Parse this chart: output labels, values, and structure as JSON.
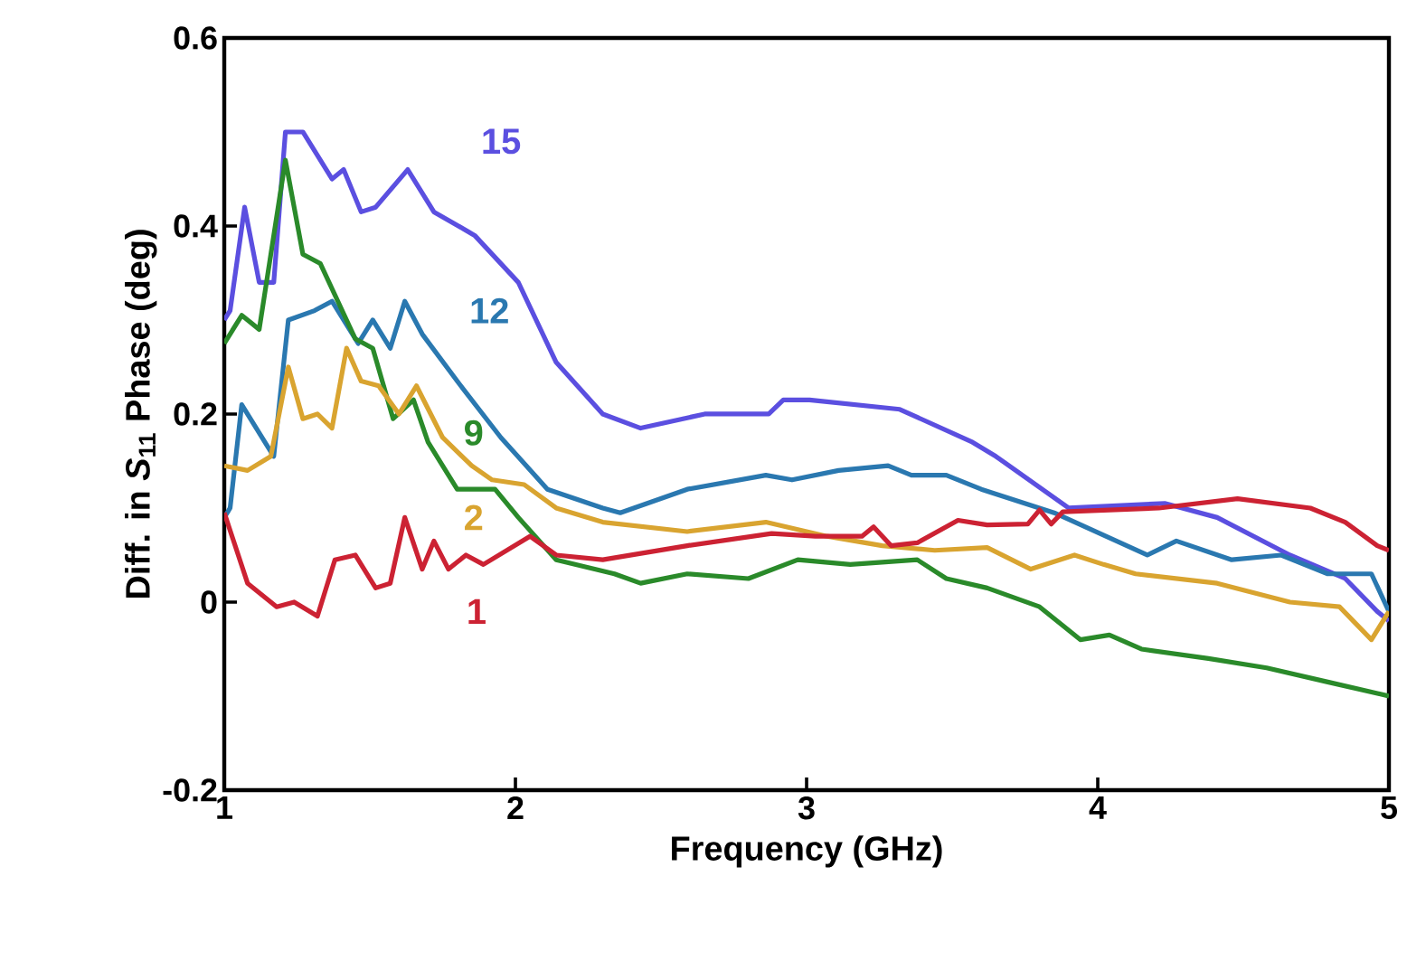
{
  "chart_data": {
    "type": "line",
    "xlabel": "Frequency (GHz)",
    "ylabel": "Diff. in *S*$_{11}$ Phase (deg)",
    "xlim": [
      1,
      5
    ],
    "xticks": [
      1,
      2,
      3,
      4,
      5
    ],
    "ylim": [
      -0.2,
      0.6
    ],
    "yticks": [
      -0.2,
      0,
      0.2,
      0.4,
      0.6
    ],
    "grid": false,
    "legend": false,
    "marker": "none",
    "line_style": "solid",
    "series": [
      {
        "name": "15",
        "color": "#5b4fe0",
        "x": [
          1.0,
          1.02,
          1.07,
          1.12,
          1.17,
          1.21,
          1.27,
          1.37,
          1.41,
          1.47,
          1.52,
          1.63,
          1.72,
          1.86,
          2.01,
          2.14,
          2.3,
          2.43,
          2.65,
          2.87,
          2.92,
          3.01,
          3.32,
          3.57,
          3.65,
          3.9,
          4.23,
          4.41,
          4.66,
          4.85,
          4.96,
          5.0
        ],
        "values": [
          0.3,
          0.31,
          0.42,
          0.34,
          0.34,
          0.5,
          0.5,
          0.45,
          0.46,
          0.415,
          0.42,
          0.46,
          0.415,
          0.39,
          0.34,
          0.255,
          0.2,
          0.185,
          0.2,
          0.2,
          0.215,
          0.215,
          0.205,
          0.17,
          0.155,
          0.1,
          0.105,
          0.09,
          0.05,
          0.025,
          -0.01,
          -0.02
        ]
      },
      {
        "name": "12",
        "color": "#2a78b0",
        "x": [
          1.0,
          1.02,
          1.06,
          1.17,
          1.22,
          1.31,
          1.37,
          1.46,
          1.51,
          1.57,
          1.62,
          1.68,
          1.8,
          1.95,
          2.11,
          2.3,
          2.36,
          2.59,
          2.86,
          2.95,
          3.11,
          3.28,
          3.36,
          3.48,
          3.6,
          3.85,
          4.17,
          4.27,
          4.46,
          4.63,
          4.79,
          4.94,
          5.0
        ],
        "values": [
          0.09,
          0.1,
          0.21,
          0.155,
          0.3,
          0.31,
          0.32,
          0.275,
          0.3,
          0.27,
          0.32,
          0.285,
          0.235,
          0.175,
          0.12,
          0.1,
          0.095,
          0.12,
          0.135,
          0.13,
          0.14,
          0.145,
          0.135,
          0.135,
          0.12,
          0.095,
          0.05,
          0.065,
          0.045,
          0.05,
          0.03,
          0.03,
          -0.01
        ]
      },
      {
        "name": "9",
        "color": "#2a8a2a",
        "x": [
          1.0,
          1.06,
          1.12,
          1.21,
          1.27,
          1.33,
          1.39,
          1.45,
          1.51,
          1.58,
          1.65,
          1.7,
          1.8,
          1.93,
          2.01,
          2.14,
          2.34,
          2.43,
          2.59,
          2.8,
          2.97,
          3.15,
          3.38,
          3.48,
          3.62,
          3.8,
          3.94,
          4.04,
          4.15,
          4.38,
          4.58,
          4.79,
          5.0
        ],
        "values": [
          0.275,
          0.305,
          0.29,
          0.47,
          0.37,
          0.36,
          0.32,
          0.28,
          0.27,
          0.195,
          0.215,
          0.17,
          0.12,
          0.12,
          0.09,
          0.045,
          0.03,
          0.02,
          0.03,
          0.025,
          0.045,
          0.04,
          0.045,
          0.025,
          0.015,
          -0.005,
          -0.04,
          -0.035,
          -0.05,
          -0.06,
          -0.07,
          -0.085,
          -0.1
        ]
      },
      {
        "name": "2",
        "color": "#d9a430",
        "x": [
          1.0,
          1.08,
          1.16,
          1.22,
          1.27,
          1.32,
          1.37,
          1.42,
          1.47,
          1.53,
          1.6,
          1.66,
          1.75,
          1.85,
          1.92,
          2.03,
          2.14,
          2.3,
          2.59,
          2.86,
          3.07,
          3.26,
          3.44,
          3.62,
          3.77,
          3.92,
          4.02,
          4.13,
          4.41,
          4.66,
          4.83,
          4.94,
          5.0
        ],
        "values": [
          0.145,
          0.14,
          0.155,
          0.25,
          0.195,
          0.2,
          0.185,
          0.27,
          0.235,
          0.23,
          0.2,
          0.23,
          0.175,
          0.145,
          0.13,
          0.125,
          0.1,
          0.085,
          0.075,
          0.085,
          0.07,
          0.06,
          0.055,
          0.058,
          0.035,
          0.05,
          0.04,
          0.03,
          0.02,
          0.0,
          -0.005,
          -0.04,
          -0.01
        ]
      },
      {
        "name": "1",
        "color": "#cc2233",
        "x": [
          1.0,
          1.08,
          1.18,
          1.24,
          1.32,
          1.38,
          1.45,
          1.52,
          1.57,
          1.62,
          1.68,
          1.72,
          1.77,
          1.83,
          1.89,
          2.05,
          2.14,
          2.3,
          2.59,
          2.88,
          3.03,
          3.19,
          3.23,
          3.29,
          3.38,
          3.52,
          3.62,
          3.76,
          3.8,
          3.84,
          3.88,
          4.21,
          4.48,
          4.73,
          4.85,
          4.96,
          5.0
        ],
        "values": [
          0.095,
          0.02,
          -0.005,
          0.0,
          -0.015,
          0.045,
          0.05,
          0.015,
          0.02,
          0.09,
          0.035,
          0.065,
          0.035,
          0.05,
          0.04,
          0.07,
          0.05,
          0.045,
          0.06,
          0.073,
          0.07,
          0.07,
          0.08,
          0.06,
          0.063,
          0.087,
          0.082,
          0.083,
          0.098,
          0.083,
          0.096,
          0.1,
          0.11,
          0.1,
          0.085,
          0.06,
          0.055
        ]
      }
    ]
  }
}
